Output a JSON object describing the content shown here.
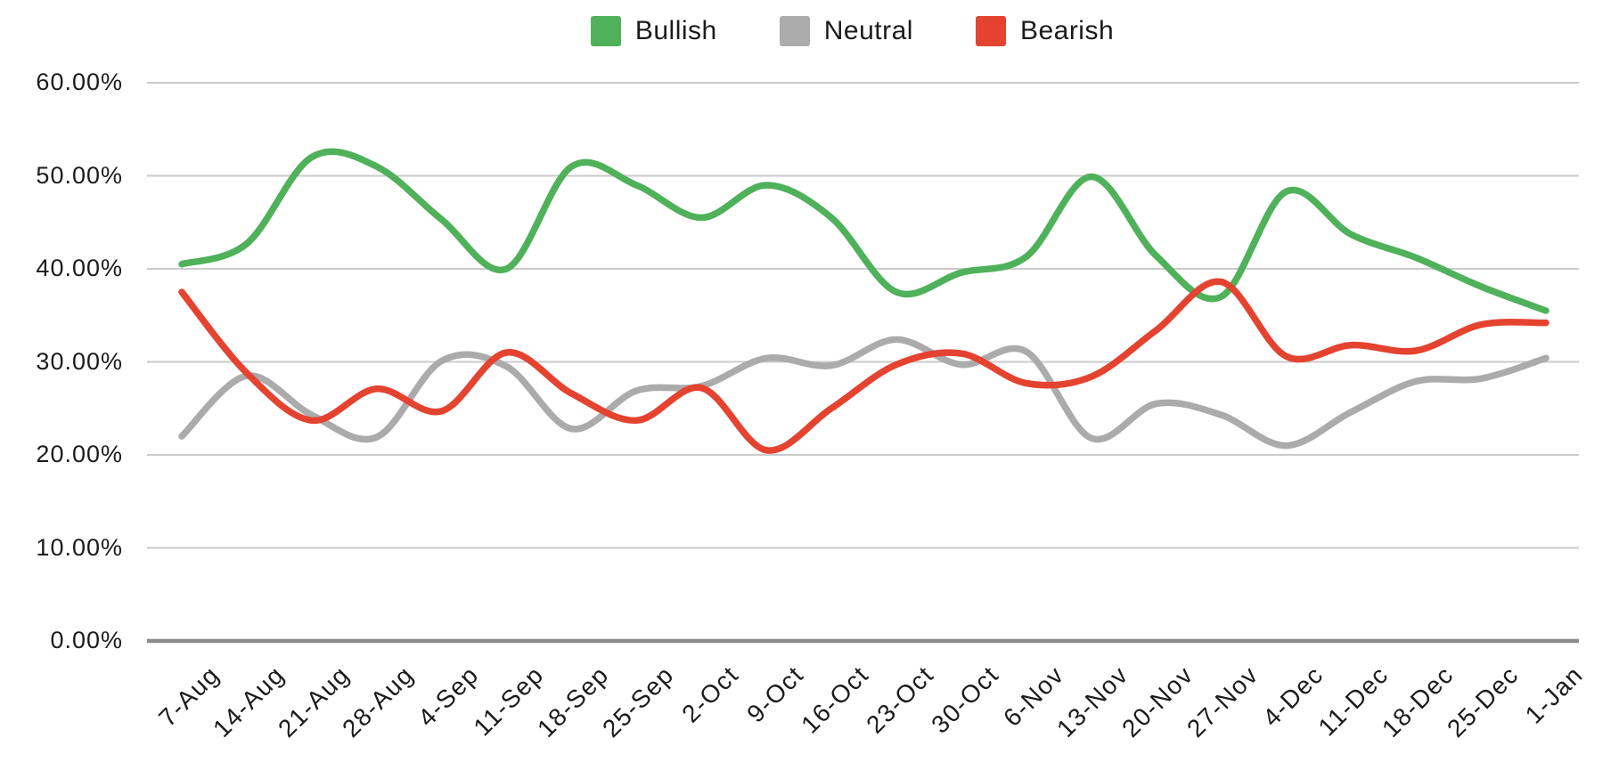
{
  "legend": {
    "position": "top-center",
    "items": [
      {
        "label": "Bullish",
        "color": "#4FB15A"
      },
      {
        "label": "Neutral",
        "color": "#ABABAB"
      },
      {
        "label": "Bearish",
        "color": "#E44330"
      }
    ]
  },
  "chart_data": {
    "type": "line",
    "title": "",
    "xlabel": "",
    "ylabel": "",
    "ylim": [
      0,
      60
    ],
    "grid": true,
    "smoothing": "spline",
    "legend_position": "top-center",
    "y_tick_labels": [
      "60.00%",
      "50.00%",
      "40.00%",
      "30.00%",
      "20.00%",
      "10.00%",
      "0.00%"
    ],
    "y_tick_values": [
      60,
      50,
      40,
      30,
      20,
      10,
      0
    ],
    "categories": [
      "7-Aug",
      "14-Aug",
      "21-Aug",
      "28-Aug",
      "4-Sep",
      "11-Sep",
      "18-Sep",
      "25-Sep",
      "2-Oct",
      "9-Oct",
      "16-Oct",
      "23-Oct",
      "30-Oct",
      "6-Nov",
      "13-Nov",
      "20-Nov",
      "27-Nov",
      "4-Dec",
      "11-Dec",
      "18-Dec",
      "25-Dec",
      "1-Jan"
    ],
    "series": [
      {
        "name": "Bullish",
        "color": "#4FB15A",
        "values": [
          40.5,
          42.7,
          52.0,
          51.0,
          45.3,
          40.0,
          51.0,
          49.0,
          45.5,
          49.0,
          45.5,
          37.5,
          39.6,
          41.3,
          49.9,
          41.4,
          37.0,
          48.3,
          43.7,
          41.2,
          38.1,
          35.5
        ]
      },
      {
        "name": "Neutral",
        "color": "#ABABAB",
        "values": [
          22.0,
          28.5,
          24.3,
          21.9,
          30.1,
          29.5,
          22.8,
          26.9,
          27.4,
          30.4,
          29.6,
          32.4,
          29.7,
          31.1,
          21.8,
          25.5,
          24.3,
          21.0,
          24.6,
          27.9,
          28.2,
          30.4
        ]
      },
      {
        "name": "Bearish",
        "color": "#E44330",
        "values": [
          37.5,
          28.8,
          23.7,
          27.1,
          24.7,
          31.0,
          26.6,
          23.7,
          27.2,
          20.5,
          25.0,
          29.7,
          30.9,
          27.7,
          28.4,
          33.4,
          38.6,
          30.6,
          31.8,
          31.2,
          34.0,
          34.2
        ]
      }
    ]
  },
  "axis_style": {
    "grid_color": "#CBCBCB",
    "baseline_color": "#8C8C8C",
    "text_color": "#1B1B1B"
  }
}
